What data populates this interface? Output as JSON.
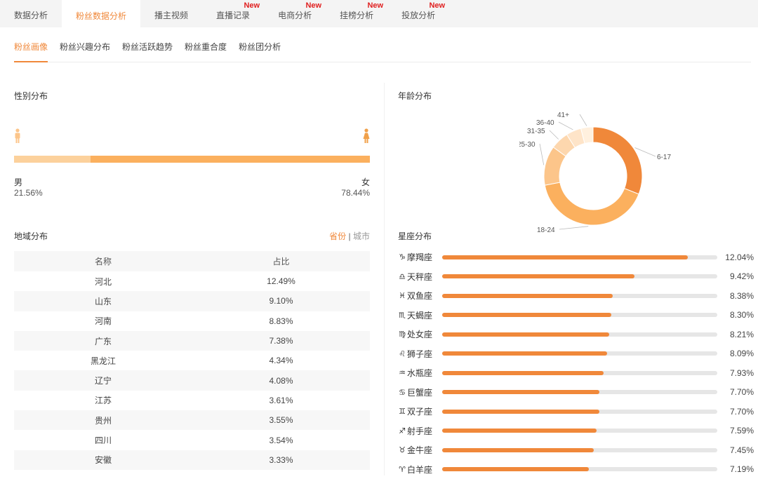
{
  "top_tabs": [
    {
      "label": "数据分析",
      "new": ""
    },
    {
      "label": "粉丝数据分析",
      "new": ""
    },
    {
      "label": "播主视频",
      "new": ""
    },
    {
      "label": "直播记录",
      "new": "New"
    },
    {
      "label": "电商分析",
      "new": "New"
    },
    {
      "label": "挂榜分析",
      "new": "New"
    },
    {
      "label": "投放分析",
      "new": "New"
    }
  ],
  "sub_tabs": [
    "粉丝画像",
    "粉丝兴趣分布",
    "粉丝活跃趋势",
    "粉丝重合度",
    "粉丝团分析"
  ],
  "gender": {
    "title": "性别分布",
    "male_label": "男",
    "male_pct": "21.56%",
    "male_value": 21.56,
    "female_label": "女",
    "female_pct": "78.44%",
    "female_value": 78.44,
    "male_color": "#fcd19c",
    "female_color": "#fbb05e"
  },
  "region": {
    "title": "地域分布",
    "toggle_province": "省份",
    "toggle_sep": "|",
    "toggle_city": "城市",
    "col_name": "名称",
    "col_ratio": "占比",
    "rows": [
      {
        "name": "河北",
        "ratio": "12.49%"
      },
      {
        "name": "山东",
        "ratio": "9.10%"
      },
      {
        "name": "河南",
        "ratio": "8.83%"
      },
      {
        "name": "广东",
        "ratio": "7.38%"
      },
      {
        "name": "黑龙江",
        "ratio": "4.34%"
      },
      {
        "name": "辽宁",
        "ratio": "4.08%"
      },
      {
        "name": "江苏",
        "ratio": "3.61%"
      },
      {
        "name": "贵州",
        "ratio": "3.55%"
      },
      {
        "name": "四川",
        "ratio": "3.54%"
      },
      {
        "name": "安徽",
        "ratio": "3.33%"
      }
    ]
  },
  "age": {
    "title": "年龄分布"
  },
  "zodiac": {
    "title": "星座分布",
    "max": 13.5,
    "fill_color": "#f0883a",
    "items": [
      {
        "icon": "♑",
        "name": "摩羯座",
        "value": 12.04,
        "label": "12.04%"
      },
      {
        "icon": "♎",
        "name": "天秤座",
        "value": 9.42,
        "label": "9.42%"
      },
      {
        "icon": "♓",
        "name": "双鱼座",
        "value": 8.38,
        "label": "8.38%"
      },
      {
        "icon": "♏",
        "name": "天蝎座",
        "value": 8.3,
        "label": "8.30%"
      },
      {
        "icon": "♍",
        "name": "处女座",
        "value": 8.21,
        "label": "8.21%"
      },
      {
        "icon": "♌",
        "name": "狮子座",
        "value": 8.09,
        "label": "8.09%"
      },
      {
        "icon": "♒",
        "name": "水瓶座",
        "value": 7.93,
        "label": "7.93%"
      },
      {
        "icon": "♋",
        "name": "巨蟹座",
        "value": 7.7,
        "label": "7.70%"
      },
      {
        "icon": "♊",
        "name": "双子座",
        "value": 7.7,
        "label": "7.70%"
      },
      {
        "icon": "♐",
        "name": "射手座",
        "value": 7.59,
        "label": "7.59%"
      },
      {
        "icon": "♉",
        "name": "金牛座",
        "value": 7.45,
        "label": "7.45%"
      },
      {
        "icon": "♈",
        "name": "白羊座",
        "value": 7.19,
        "label": "7.19%"
      }
    ]
  },
  "chart_data": {
    "type": "pie",
    "title": "年龄分布",
    "categories": [
      "6-17",
      "18-24",
      "25-30",
      "31-35",
      "36-40",
      "41+"
    ],
    "values": [
      31,
      41,
      13,
      6,
      5,
      4
    ],
    "colors": [
      "#f0883a",
      "#fbb05e",
      "#fcc58a",
      "#fdd7ae",
      "#fee4c8",
      "#fff0de"
    ]
  }
}
